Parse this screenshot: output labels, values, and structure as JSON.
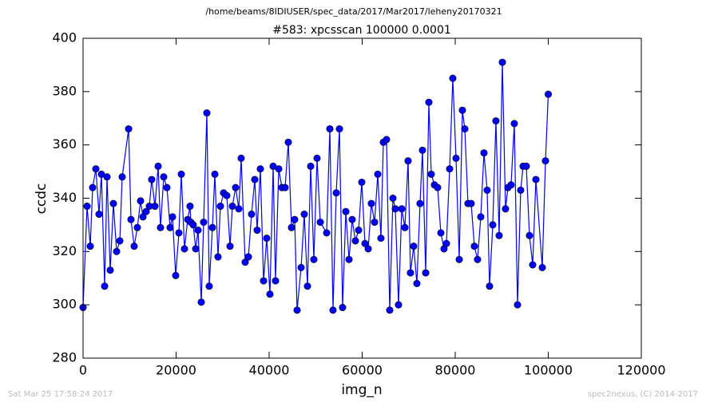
{
  "chart_data": {
    "type": "line",
    "suptitle": "/home/beams/8IDIUSER/spec_data/2017/Mar2017/leheny20170321",
    "title": "#583: xpcsscan 100000 0.0001",
    "xlabel": "img_n",
    "ylabel": "ccdc",
    "footer_left": "Sat Mar 25 17:58:24 2017",
    "footer_right": "spec2nexus, (C) 2014-2017",
    "xlim": [
      0,
      120000
    ],
    "xticks": [
      0,
      20000,
      40000,
      60000,
      80000,
      100000,
      120000
    ],
    "ylim": [
      280,
      400
    ],
    "yticks": [
      280,
      300,
      320,
      340,
      360,
      380,
      400
    ],
    "color": "#0000ff",
    "x": [
      0,
      860,
      1550,
      2060,
      2750,
      3430,
      3950,
      4640,
      5150,
      5840,
      6520,
      7210,
      7900,
      8410,
      9790,
      10300,
      10990,
      11670,
      12360,
      12880,
      13560,
      14250,
      14760,
      15450,
      16140,
      16650,
      17340,
      18030,
      18710,
      19230,
      19910,
      20600,
      21120,
      21800,
      22490,
      23000,
      23180,
      23690,
      24210,
      24720,
      25410,
      25920,
      26610,
      27120,
      27810,
      28330,
      29010,
      29530,
      30210,
      30900,
      31590,
      32100,
      32790,
      33480,
      33990,
      34850,
      35540,
      36220,
      36910,
      37420,
      38110,
      38800,
      39480,
      40170,
      40860,
      41370,
      42060,
      42750,
      43430,
      44120,
      44810,
      45490,
      46010,
      46870,
      47550,
      48240,
      48930,
      49610,
      50300,
      50990,
      52360,
      53050,
      53730,
      54420,
      55110,
      55790,
      56480,
      57170,
      57850,
      58540,
      59230,
      59910,
      60600,
      61290,
      61970,
      62660,
      63350,
      64030,
      64550,
      65230,
      65920,
      66610,
      67120,
      67810,
      68500,
      69180,
      69870,
      70380,
      71070,
      71760,
      72440,
      72960,
      73650,
      74330,
      74850,
      75530,
      76220,
      76910,
      77590,
      78110,
      78800,
      79480,
      80170,
      80860,
      81540,
      82060,
      82740,
      83430,
      84120,
      84800,
      85490,
      86180,
      86860,
      87380,
      88070,
      88750,
      89440,
      90130,
      90810,
      91330,
      92010,
      92700,
      93390,
      94070,
      94590,
      95280,
      95960,
      96650,
      97340,
      98710,
      99400,
      100000
    ],
    "values": [
      299,
      337,
      322,
      344,
      351,
      334,
      349,
      307,
      348,
      313,
      338,
      320,
      324,
      348,
      366,
      332,
      322,
      329,
      339,
      333,
      335,
      337,
      347,
      337,
      352,
      329,
      348,
      344,
      329,
      333,
      311,
      327,
      349,
      321,
      332,
      337,
      331,
      330,
      321,
      328,
      301,
      331,
      372,
      307,
      329,
      349,
      318,
      337,
      342,
      341,
      322,
      337,
      344,
      336,
      355,
      316,
      318,
      334,
      347,
      328,
      351,
      309,
      325,
      304,
      352,
      309,
      351,
      344,
      344,
      361,
      329,
      332,
      298,
      314,
      334,
      307,
      352,
      317,
      355,
      331,
      327,
      366,
      298,
      342,
      366,
      299,
      335,
      317,
      332,
      324,
      328,
      346,
      323,
      321,
      338,
      331,
      349,
      325,
      361,
      362,
      298,
      340,
      336,
      300,
      336,
      329,
      354,
      312,
      322,
      308,
      338,
      358,
      312,
      376,
      349,
      345,
      344,
      327,
      321,
      323,
      351,
      385,
      355,
      317,
      373,
      366,
      338,
      338,
      322,
      317,
      333,
      357,
      343,
      307,
      330,
      369,
      326,
      391,
      336,
      344,
      345,
      368,
      300,
      343,
      352,
      352,
      326,
      315,
      347,
      314,
      354,
      379
    ]
  }
}
